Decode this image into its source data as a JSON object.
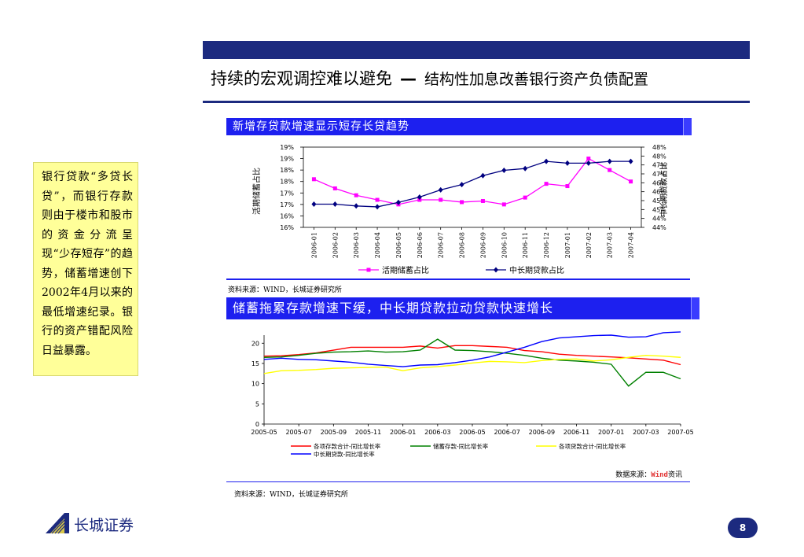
{
  "slide": {
    "title_main": "持续的宏观调控难以避免",
    "title_dash": "—",
    "title_sub": "结构性加息改善银行资产负债配置",
    "sidebox_text": "银行贷款“多贷长贷”，而银行存款则由于楼市和股市的资金分流呈现“少存短存”的趋势，储蓄增速创下2002年4月以来的最低增速纪录。银行的资产错配风险日益暴露。",
    "page_number": "8",
    "logo_text": "长城证券"
  },
  "chart1_header": "新增存贷款增速显示短存长贷趋势",
  "chart1_source": "资料来源：WIND，长城证券研究所",
  "chart2_header": "储蓄拖累存款增速下缓，中长期贷款拉动贷款快速增长",
  "chart2_watermark_prefix": "数据来源：",
  "chart2_watermark_brand": "Wind",
  "chart2_watermark_suffix": "资讯",
  "chart2_source": "资料来源：WIND，长城证券研究所",
  "chart_data": [
    {
      "type": "line",
      "categories": [
        "2006-01",
        "2006-02",
        "2006-03",
        "2006-04",
        "2006-05",
        "2006-06",
        "2006-07",
        "2006-08",
        "2006-09",
        "2006-10",
        "2006-11",
        "2006-12",
        "2007-01",
        "2007-02",
        "2007-03",
        "2007-04"
      ],
      "ylabel": "活期储蓄占比",
      "y2label": "中长期贷款占比",
      "yticks": [
        "16%",
        "16%",
        "17%",
        "17%",
        "18%",
        "18%",
        "19%",
        "19%"
      ],
      "ylim": [
        16.0,
        19.5
      ],
      "y2ticks": [
        "44%",
        "44%",
        "45%",
        "45%",
        "46%",
        "46%",
        "47%",
        "47%",
        "48%",
        "48%"
      ],
      "y2lim": [
        44.0,
        48.5
      ],
      "series": [
        {
          "name": "活期储蓄占比",
          "axis": "left",
          "color": "#ff00ff",
          "marker": "square",
          "values": [
            18.1,
            17.7,
            17.4,
            17.2,
            17.0,
            17.2,
            17.2,
            17.1,
            17.15,
            17.0,
            17.3,
            17.9,
            17.8,
            19.0,
            18.5,
            18.0
          ]
        },
        {
          "name": "中长期贷款占比",
          "axis": "right",
          "color": "#000080",
          "marker": "diamond",
          "values": [
            45.3,
            45.3,
            45.2,
            45.15,
            45.4,
            45.7,
            46.1,
            46.4,
            46.9,
            47.2,
            47.3,
            47.7,
            47.6,
            47.6,
            47.7,
            47.7
          ]
        }
      ],
      "legend": "bottom"
    },
    {
      "type": "line",
      "x": [
        "2005-05",
        "2005-07",
        "2005-09",
        "2005-11",
        "2006-01",
        "2006-03",
        "2006-05",
        "2006-07",
        "2006-09",
        "2006-11",
        "2007-01",
        "2007-03",
        "2007-05"
      ],
      "xlim": [
        0,
        24
      ],
      "yticks": [
        "0",
        "5",
        "10",
        "15",
        "20"
      ],
      "ylim": [
        0,
        22
      ],
      "series": [
        {
          "name": "各项存款合计-同比增长率",
          "color": "#ff0000",
          "points": [
            [
              0,
              16.8
            ],
            [
              1,
              16.9
            ],
            [
              2,
              17.2
            ],
            [
              3,
              17.6
            ],
            [
              4,
              18.3
            ],
            [
              5,
              19.0
            ],
            [
              6,
              19.0
            ],
            [
              7,
              19.0
            ],
            [
              8,
              19.0
            ],
            [
              9,
              19.3
            ],
            [
              10,
              18.8
            ],
            [
              11,
              19.4
            ],
            [
              12,
              19.4
            ],
            [
              13,
              19.2
            ],
            [
              14,
              19.0
            ],
            [
              15,
              18.2
            ],
            [
              16,
              17.9
            ],
            [
              17,
              17.3
            ],
            [
              18,
              17.0
            ],
            [
              19,
              16.8
            ],
            [
              20,
              16.6
            ],
            [
              21,
              16.4
            ],
            [
              22,
              16.1
            ],
            [
              23,
              15.8
            ],
            [
              24,
              14.7
            ]
          ]
        },
        {
          "name": "储蓄存款-同比增长率",
          "color": "#008000",
          "points": [
            [
              0,
              16.5
            ],
            [
              1,
              16.6
            ],
            [
              2,
              17.0
            ],
            [
              3,
              17.5
            ],
            [
              4,
              17.8
            ],
            [
              5,
              17.9
            ],
            [
              6,
              18.1
            ],
            [
              7,
              17.8
            ],
            [
              8,
              17.9
            ],
            [
              9,
              18.3
            ],
            [
              10,
              21.0
            ],
            [
              11,
              18.3
            ],
            [
              12,
              18.2
            ],
            [
              13,
              17.9
            ],
            [
              14,
              17.5
            ],
            [
              15,
              17.0
            ],
            [
              16,
              16.3
            ],
            [
              17,
              15.8
            ],
            [
              18,
              15.6
            ],
            [
              19,
              15.3
            ],
            [
              20,
              14.8
            ],
            [
              21,
              9.4
            ],
            [
              22,
              12.8
            ],
            [
              23,
              12.8
            ],
            [
              24,
              11.2
            ]
          ]
        },
        {
          "name": "各项贷款合计-同比增长率",
          "color": "#ffff00",
          "points": [
            [
              0,
              12.5
            ],
            [
              1,
              13.2
            ],
            [
              2,
              13.3
            ],
            [
              3,
              13.5
            ],
            [
              4,
              13.8
            ],
            [
              5,
              13.9
            ],
            [
              6,
              14.0
            ],
            [
              7,
              14.1
            ],
            [
              8,
              13.2
            ],
            [
              9,
              13.9
            ],
            [
              10,
              14.2
            ],
            [
              11,
              14.6
            ],
            [
              12,
              15.1
            ],
            [
              13,
              15.5
            ],
            [
              14,
              15.4
            ],
            [
              15,
              15.2
            ],
            [
              16,
              15.7
            ],
            [
              17,
              16.0
            ],
            [
              18,
              16.1
            ],
            [
              19,
              15.6
            ],
            [
              20,
              15.9
            ],
            [
              21,
              16.5
            ],
            [
              22,
              17.0
            ],
            [
              23,
              16.8
            ],
            [
              24,
              16.5
            ]
          ]
        },
        {
          "name": "中长期贷款-同比增长率",
          "color": "#0000ff",
          "points": [
            [
              0,
              16.0
            ],
            [
              1,
              16.3
            ],
            [
              2,
              16.0
            ],
            [
              3,
              15.9
            ],
            [
              4,
              15.6
            ],
            [
              5,
              15.3
            ],
            [
              6,
              14.8
            ],
            [
              7,
              14.5
            ],
            [
              8,
              14.2
            ],
            [
              9,
              14.6
            ],
            [
              10,
              14.7
            ],
            [
              11,
              15.2
            ],
            [
              12,
              15.8
            ],
            [
              13,
              16.6
            ],
            [
              14,
              17.8
            ],
            [
              15,
              19.0
            ],
            [
              16,
              20.4
            ],
            [
              17,
              21.3
            ],
            [
              18,
              21.6
            ],
            [
              19,
              21.9
            ],
            [
              20,
              22.0
            ],
            [
              21,
              21.5
            ],
            [
              22,
              21.6
            ],
            [
              23,
              22.6
            ],
            [
              24,
              22.8
            ]
          ]
        }
      ],
      "legend": "bottom"
    }
  ]
}
